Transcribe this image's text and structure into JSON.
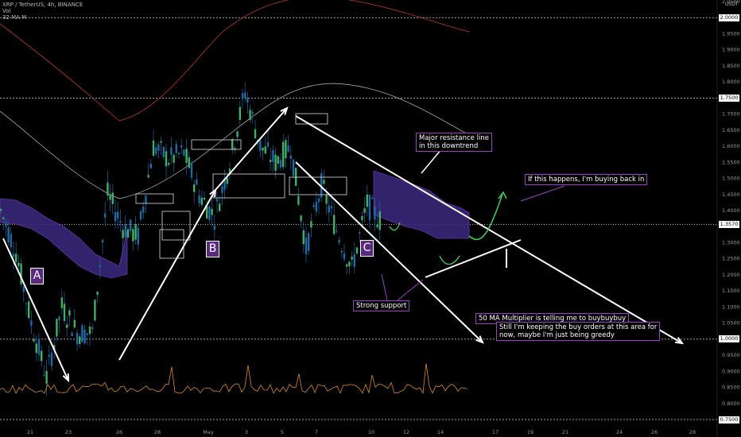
{
  "header": {
    "symbol_line": "XRP / TetherUS, 4h, BINANCE",
    "vol_label": "Vol",
    "ma_label": "32 MA M"
  },
  "axis": {
    "currency": "USDT",
    "y_ticks": [
      "2.0500",
      "2.0000",
      "1.9500",
      "1.9000",
      "1.8500",
      "1.8000",
      "1.7500",
      "1.7000",
      "1.6500",
      "1.6000",
      "1.5500",
      "1.5000",
      "1.4500",
      "1.4000",
      "1.3500",
      "1.3000",
      "1.2500",
      "1.2000",
      "1.1500",
      "1.1000",
      "1.0500",
      "1.0000",
      "0.9500",
      "0.9000",
      "0.8500",
      "0.8000",
      "0.7500"
    ],
    "x_ticks": [
      "21",
      "23",
      "26",
      "28",
      "May",
      "3",
      "5",
      "7",
      "10",
      "12",
      "14",
      "17",
      "19",
      "21",
      "24",
      "26",
      "28"
    ],
    "price_tags": [
      {
        "text": "2.0000",
        "bg": "#ffffff",
        "fg": "#000000"
      },
      {
        "text": "1.7500",
        "bg": "#ffffff",
        "fg": "#000000"
      },
      {
        "text": "1.3570",
        "bg": "#ffffff",
        "fg": "#000000"
      },
      {
        "text": "1.0000",
        "bg": "#ffffff",
        "fg": "#000000"
      },
      {
        "text": "0.7500",
        "bg": "#ffffff",
        "fg": "#000000"
      }
    ]
  },
  "waves": {
    "a": "A",
    "b": "B",
    "c": "C"
  },
  "annotations": {
    "resistance": [
      "Major resistance line",
      "in this downtrend"
    ],
    "buyback": "If this happens, I'm buying back in",
    "support": "Strong support",
    "ma_multiplier": "50 MA Multiplier is telling me to buybuybuy",
    "buy_orders": [
      "Still I'm keeping the buy orders at this area for",
      "now, maybe I'm just being greedy"
    ]
  },
  "colors": {
    "background": "#000000",
    "candle": "#1f6aa5",
    "ribbon": "#7a3ec0",
    "ribbon_fill": "#3b2a80",
    "ma_red": "#c0392b",
    "ma_gray": "#bfbfbf",
    "volume_line": "#e08a1e",
    "annotation_border": "#a03cc4",
    "arrow": "#ffffff",
    "green_arrow": "#3ed15a"
  },
  "chart_data": {
    "type": "candlestick",
    "symbol": "XRP / TetherUS",
    "timeframe": "4h",
    "exchange": "BINANCE",
    "ylim": [
      0.75,
      2.05
    ],
    "current_price": 1.357,
    "price_path": [
      {
        "date": "Apr 20",
        "price": 1.4
      },
      {
        "date": "Apr 21",
        "price": 1.27
      },
      {
        "date": "Apr 22",
        "price": 1.05
      },
      {
        "date": "Apr 23",
        "price": 0.88
      },
      {
        "date": "Apr 24",
        "price": 1.1
      },
      {
        "date": "Apr 25",
        "price": 1.02
      },
      {
        "date": "Apr 26",
        "price": 1.02
      },
      {
        "date": "Apr 27",
        "price": 1.45
      },
      {
        "date": "Apr 28",
        "price": 1.35
      },
      {
        "date": "Apr 29",
        "price": 1.32
      },
      {
        "date": "Apr 30",
        "price": 1.6
      },
      {
        "date": "May 1",
        "price": 1.56
      },
      {
        "date": "May 2",
        "price": 1.58
      },
      {
        "date": "May 3",
        "price": 1.45
      },
      {
        "date": "May 4",
        "price": 1.38
      },
      {
        "date": "May 5",
        "price": 1.55
      },
      {
        "date": "May 6",
        "price": 1.77
      },
      {
        "date": "May 7",
        "price": 1.6
      },
      {
        "date": "May 8",
        "price": 1.55
      },
      {
        "date": "May 9",
        "price": 1.6
      },
      {
        "date": "May 10",
        "price": 1.28
      },
      {
        "date": "May 11",
        "price": 1.48
      },
      {
        "date": "May 12",
        "price": 1.34
      },
      {
        "date": "May 13",
        "price": 1.22
      },
      {
        "date": "May 14",
        "price": 1.42
      },
      {
        "date": "May 15",
        "price": 1.36
      }
    ],
    "levels": [
      2.0,
      1.75,
      1.357,
      1.0,
      0.75
    ]
  }
}
